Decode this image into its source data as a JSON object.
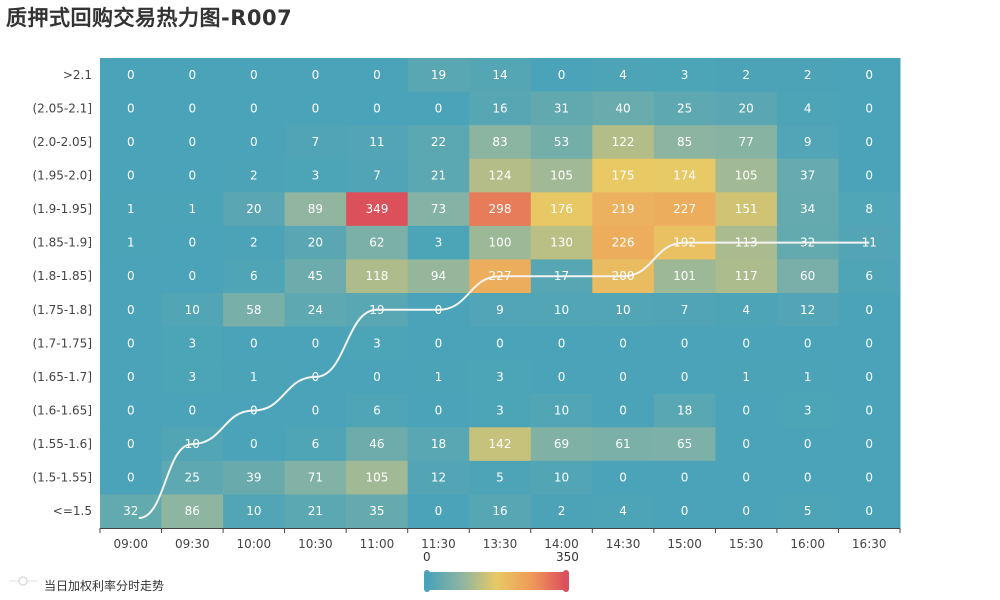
{
  "title": "质押式回购交易热力图-R007",
  "legend": {
    "line_label": "当日加权利率分时走势"
  },
  "visual_map": {
    "min_label": "0",
    "max_label": "350",
    "min": 0,
    "max": 350,
    "colors": [
      "#4aa3b8",
      "#8fb5a0",
      "#e8c964",
      "#ef9a58",
      "#dc4f5c"
    ]
  },
  "chart_data": {
    "type": "heatmap",
    "title": "质押式回购交易热力图-R007",
    "x": [
      "09:00",
      "09:30",
      "10:00",
      "10:30",
      "11:00",
      "11:30",
      "13:30",
      "14:00",
      "14:30",
      "15:00",
      "15:30",
      "16:00",
      "16:30"
    ],
    "y_top_to_bottom": [
      ">2.1",
      "(2.05-2.1]",
      "(2.0-2.05]",
      "(1.95-2.0]",
      "(1.9-1.95]",
      "(1.85-1.9]",
      "(1.8-1.85]",
      "(1.75-1.8]",
      "(1.7-1.75]",
      "(1.65-1.7]",
      "(1.6-1.65]",
      "(1.55-1.6]",
      "(1.5-1.55]",
      "<=1.5"
    ],
    "values": [
      [
        0,
        0,
        0,
        0,
        0,
        19,
        14,
        0,
        4,
        3,
        2,
        2,
        0
      ],
      [
        0,
        0,
        0,
        0,
        0,
        0,
        16,
        31,
        40,
        25,
        20,
        4,
        0
      ],
      [
        0,
        0,
        0,
        7,
        11,
        22,
        83,
        53,
        122,
        85,
        77,
        9,
        0
      ],
      [
        0,
        0,
        2,
        3,
        7,
        21,
        124,
        105,
        175,
        174,
        105,
        37,
        0
      ],
      [
        1,
        1,
        20,
        89,
        349,
        73,
        298,
        176,
        219,
        227,
        151,
        34,
        8
      ],
      [
        1,
        0,
        2,
        20,
        62,
        3,
        100,
        130,
        226,
        192,
        113,
        32,
        11
      ],
      [
        0,
        0,
        6,
        45,
        118,
        94,
        227,
        17,
        200,
        101,
        117,
        60,
        6
      ],
      [
        0,
        10,
        58,
        24,
        19,
        0,
        9,
        10,
        10,
        7,
        4,
        12,
        0
      ],
      [
        0,
        3,
        0,
        0,
        3,
        0,
        0,
        0,
        0,
        0,
        0,
        0,
        0
      ],
      [
        0,
        3,
        1,
        0,
        0,
        1,
        3,
        0,
        0,
        0,
        1,
        1,
        0
      ],
      [
        0,
        0,
        0,
        0,
        6,
        0,
        3,
        10,
        0,
        18,
        0,
        3,
        0
      ],
      [
        0,
        10,
        0,
        6,
        46,
        18,
        142,
        69,
        61,
        65,
        0,
        0,
        0
      ],
      [
        0,
        25,
        39,
        71,
        105,
        12,
        5,
        10,
        0,
        0,
        0,
        0,
        0
      ],
      [
        32,
        86,
        10,
        21,
        35,
        0,
        16,
        2,
        4,
        0,
        0,
        5,
        0
      ]
    ],
    "line_series": {
      "name": "当日加权利率分时走势",
      "smooth": true,
      "values": [
        "<=1.5",
        "(1.55-1.6]",
        "(1.6-1.65]",
        "(1.65-1.7]",
        "(1.75-1.8]",
        "(1.75-1.8]",
        "(1.8-1.85]",
        "(1.8-1.85]",
        "(1.8-1.85]",
        "(1.85-1.9]",
        "(1.85-1.9]",
        "(1.85-1.9]",
        "(1.85-1.9]"
      ]
    }
  }
}
